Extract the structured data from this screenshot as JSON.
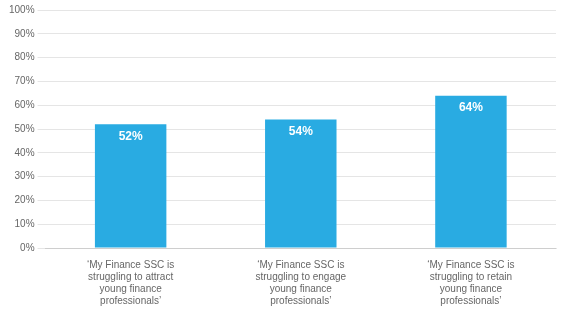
{
  "chart_data": {
    "type": "bar",
    "categories": [
      "‘My Finance SSC is\nstruggling to attract\nyoung finance\nprofessionals’",
      "‘My Finance SSC is\nstruggling to engage\nyoung finance\nprofessionals’",
      "‘My Finance SSC is\nstruggling to retain\nyoung finance\nprofessionals’"
    ],
    "values": [
      52,
      54,
      64
    ],
    "value_labels": [
      "52%",
      "54%",
      "64%"
    ],
    "data_labels": true,
    "color": "#29ABE2",
    "ylim": [
      0,
      100
    ],
    "yticks": [
      {
        "value": 0,
        "label": "0%"
      },
      {
        "value": 10,
        "label": "10%"
      },
      {
        "value": 20,
        "label": "20%"
      },
      {
        "value": 30,
        "label": "30%"
      },
      {
        "value": 40,
        "label": "40%"
      },
      {
        "value": 50,
        "label": "50%"
      },
      {
        "value": 60,
        "label": "60%"
      },
      {
        "value": 70,
        "label": "70%"
      },
      {
        "value": 80,
        "label": "80%"
      },
      {
        "value": 90,
        "label": "90%"
      },
      {
        "value": 100,
        "label": "100%"
      }
    ],
    "grid": true
  }
}
